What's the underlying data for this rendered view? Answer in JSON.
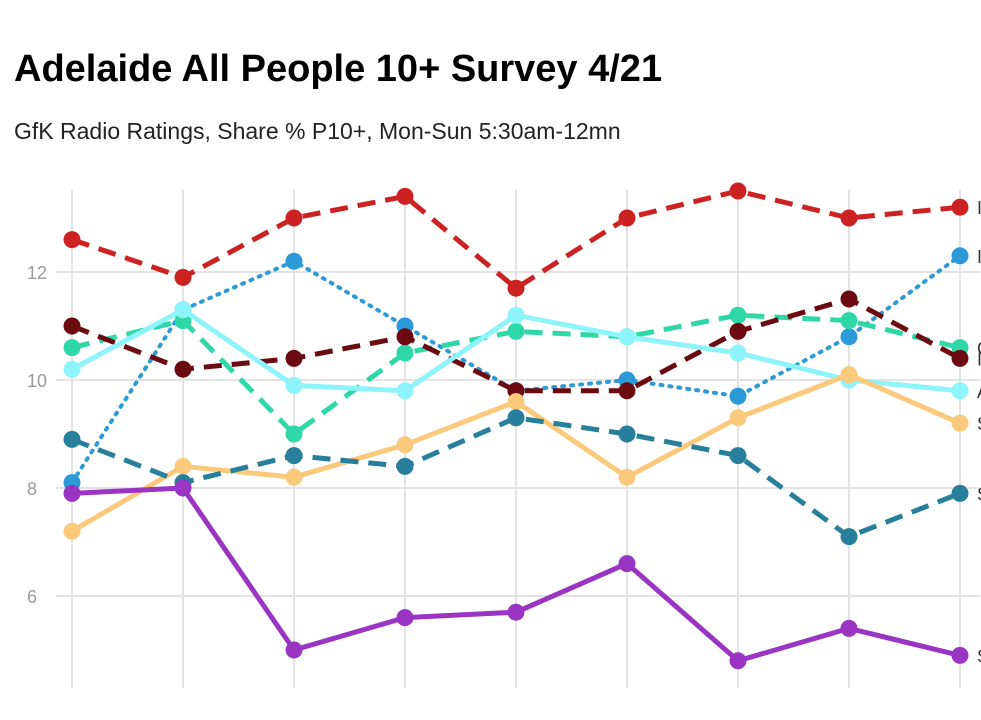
{
  "chart_data": {
    "type": "line",
    "title": "Adelaide All People 10+ Survey 4/21",
    "subtitle": "GfK Radio Ratings, Share % P10+, Mon-Sun 5:30am-12mn",
    "xlabel": "",
    "ylabel": "",
    "ylim": [
      4.6,
      13.8
    ],
    "yticks": [
      6,
      8,
      10,
      12
    ],
    "grid": true,
    "series": [
      {
        "color": "#cc2222",
        "dash": "dashed",
        "values": [
          12.6,
          11.9,
          13.0,
          13.4,
          11.7,
          13.0,
          13.5,
          13.0,
          13.2
        ],
        "end_label": "I"
      },
      {
        "color": "#2b9ad6",
        "dash": "dotted",
        "values": [
          8.1,
          11.3,
          12.2,
          11.0,
          9.8,
          10.0,
          9.7,
          10.8,
          12.3
        ],
        "end_label": "I"
      },
      {
        "color": "#2ed8a6",
        "dash": "dashed",
        "values": [
          10.6,
          11.1,
          9.0,
          10.5,
          10.9,
          10.8,
          11.2,
          11.1,
          10.6
        ],
        "end_label": "C"
      },
      {
        "color": "#6b0a10",
        "dash": "dashed",
        "values": [
          11.0,
          10.2,
          10.4,
          10.8,
          9.8,
          9.8,
          10.9,
          11.5,
          10.4
        ],
        "end_label": "I"
      },
      {
        "color": "#8ef4fb",
        "dash": "solid",
        "values": [
          10.2,
          11.3,
          9.9,
          9.8,
          11.2,
          10.8,
          10.5,
          10.0,
          9.8
        ],
        "end_label": "A"
      },
      {
        "color": "#fbc97c",
        "dash": "solid",
        "values": [
          7.2,
          8.4,
          8.2,
          8.8,
          9.6,
          8.2,
          9.3,
          10.1,
          9.2
        ],
        "end_label": "S"
      },
      {
        "color": "#277f9c",
        "dash": "dashed",
        "values": [
          8.9,
          8.1,
          8.6,
          8.4,
          9.3,
          9.0,
          8.6,
          7.1,
          7.9
        ],
        "end_label": "S"
      },
      {
        "color": "#9935c2",
        "dash": "solid",
        "values": [
          7.9,
          8.0,
          5.0,
          5.6,
          5.7,
          6.6,
          4.8,
          5.4,
          4.9
        ],
        "end_label": "S"
      }
    ]
  }
}
